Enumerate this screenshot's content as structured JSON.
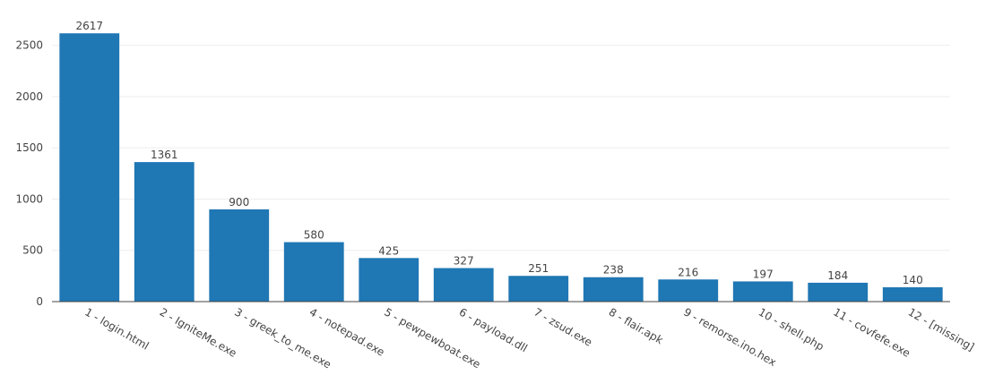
{
  "chart_data": {
    "type": "bar",
    "categories": [
      "1 - login.html",
      "2 - IgniteMe.exe",
      "3 - greek_to_me.exe",
      "4 - notepad.exe",
      "5 - pewpewboat.exe",
      "6 - payload.dll",
      "7 - zsud.exe",
      "8 - flair.apk",
      "9 - remorse.ino.hex",
      "10 - shell.php",
      "11 - covfefe.exe",
      "12 - [missing]"
    ],
    "values": [
      2617,
      1361,
      900,
      580,
      425,
      327,
      251,
      238,
      216,
      197,
      184,
      140
    ],
    "title": "",
    "xlabel": "",
    "ylabel": "",
    "ylim": [
      0,
      2750
    ],
    "yticks": [
      0,
      500,
      1000,
      1500,
      2000,
      2500
    ],
    "grid": true,
    "bar_color": "#1f77b4",
    "data_labels": true
  }
}
